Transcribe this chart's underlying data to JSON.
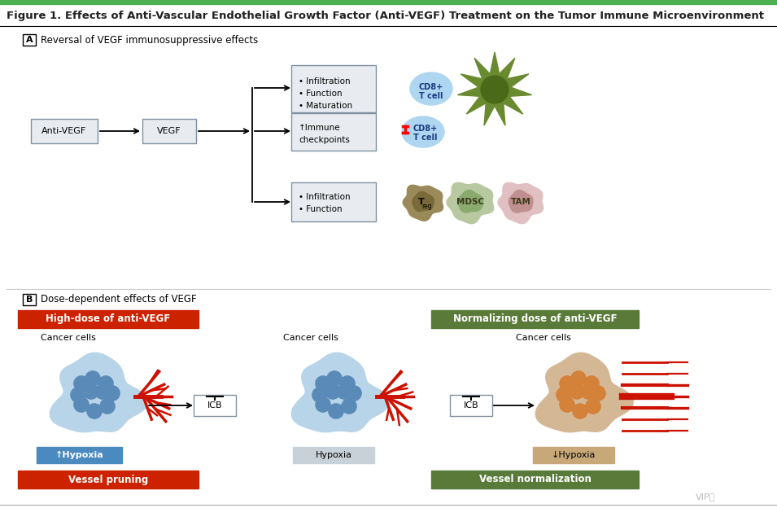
{
  "title": "Figure 1. Effects of Anti-Vascular Endothelial Growth Factor (Anti-VEGF) Treatment on the Tumor Immune Microenvironment",
  "title_color": "#222222",
  "top_bar_color": "#4caf50",
  "title_fontsize": 9.5,
  "bg_color": "#ffffff",
  "panel_a_label": "A",
  "panel_a_title": "Reversal of VEGF immunosuppressive effects",
  "panel_b_label": "B",
  "panel_b_title": "Dose-dependent effects of VEGF",
  "box_antivegf": "Anti-VEGF",
  "box_vegf": "VEGF",
  "box_infiltration_maturation": "• Infiltration\n• Function\n• Maturation",
  "box_immune_checkpoints": "↑Immune\ncheckpoints",
  "box_infiltration_function": "• Infiltration\n• Function",
  "label_cd8_active": "CD8+\nT cell",
  "label_cd8_blocked": "CD8+\nT cell",
  "label_treg": "Treg",
  "label_mdsc": "MDSC",
  "label_tam": "TAM",
  "red_box1_text": "High-dose of anti-VEGF",
  "red_box2_text": "Vessel pruning",
  "green_box1_text": "Normalizing dose of anti-VEGF",
  "green_box2_text": "Vessel normalization",
  "cancer_label1": "Cancer cells",
  "cancer_label2": "Cancer cells",
  "cancer_label3": "Cancer cells",
  "hypoxia_up": "↑Hypoxia",
  "hypoxia_neutral": "Hypoxia",
  "hypoxia_down": "↓Hypoxia",
  "icb_label": "ICB",
  "red_color": "#cc2200",
  "green_color": "#5a7a3a",
  "blue_light": "#aed6f1",
  "blue_cell": "#5a8ab8",
  "blue_dark": "#1a3a6a",
  "blue_bg": "#b8d4e8",
  "orange_cell": "#d4813a",
  "tan_bg": "#d4b896",
  "gray_box": "#c8d0d8",
  "box_bg": "#e8ecf0",
  "box_border": "#8090a0",
  "vessel_red": "#cc1100"
}
